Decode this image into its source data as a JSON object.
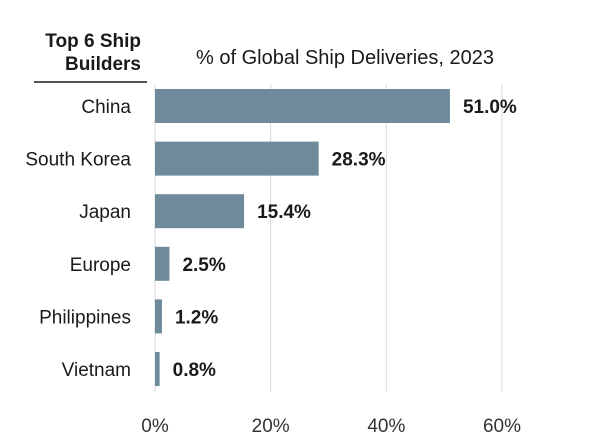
{
  "chart_data": {
    "type": "bar",
    "orientation": "horizontal",
    "category_header": "Top 6 Ship Builders",
    "title": "% of Global Ship Deliveries, 2023",
    "categories": [
      "China",
      "South Korea",
      "Japan",
      "Europe",
      "Philippines",
      "Vietnam"
    ],
    "values": [
      51.0,
      28.3,
      15.4,
      2.5,
      1.2,
      0.8
    ],
    "value_labels": [
      "51.0%",
      "28.3%",
      "15.4%",
      "2.5%",
      "1.2%",
      "0.8%"
    ],
    "xlim": [
      0,
      60
    ],
    "x_ticks": [
      0,
      20,
      40,
      60
    ],
    "x_tick_labels": [
      "0%",
      "20%",
      "40%",
      "60%"
    ],
    "grid": "vertical",
    "bar_color": "#6e8a9b",
    "grid_color": "#d9d9d9"
  }
}
